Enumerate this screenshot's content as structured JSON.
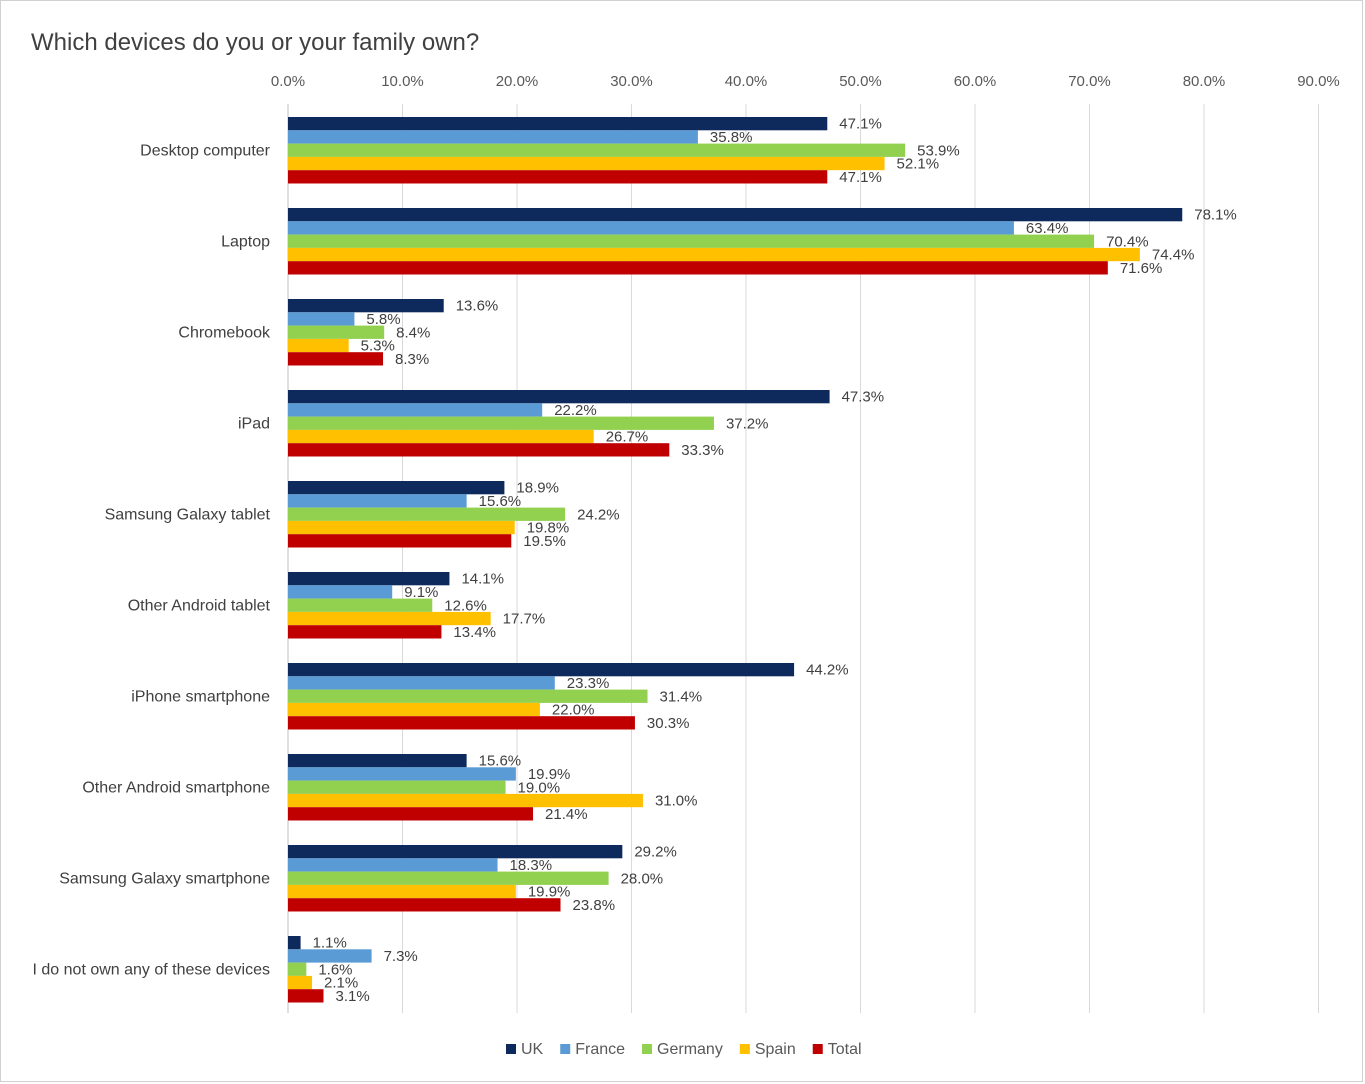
{
  "chart_data": {
    "type": "bar",
    "orientation": "horizontal",
    "title": "Which devices do you or your family own?",
    "xlim": [
      0,
      90
    ],
    "x_ticks": [
      "0.0%",
      "10.0%",
      "20.0%",
      "30.0%",
      "40.0%",
      "50.0%",
      "60.0%",
      "70.0%",
      "80.0%",
      "90.0%"
    ],
    "x_tick_values": [
      0,
      10,
      20,
      30,
      40,
      50,
      60,
      70,
      80,
      90
    ],
    "grid": true,
    "axis_position": "top",
    "legend_position": "bottom",
    "categories": [
      "Desktop computer",
      "Laptop",
      "Chromebook",
      "iPad",
      "Samsung Galaxy tablet",
      "Other Android tablet",
      "iPhone smartphone",
      "Other Android smartphone",
      "Samsung Galaxy smartphone",
      "I do not own any of these devices"
    ],
    "series": [
      {
        "name": "UK",
        "color": "#0e2a5c",
        "values": [
          47.1,
          78.1,
          13.6,
          47.3,
          18.9,
          14.1,
          44.2,
          15.6,
          29.2,
          1.1
        ],
        "labels": [
          "47.1%",
          "78.1%",
          "13.6%",
          "47.3%",
          "18.9%",
          "14.1%",
          "44.2%",
          "15.6%",
          "29.2%",
          "1.1%"
        ]
      },
      {
        "name": "France",
        "color": "#5b9bd5",
        "values": [
          35.8,
          63.4,
          5.8,
          22.2,
          15.6,
          9.1,
          23.3,
          19.9,
          18.3,
          7.3
        ],
        "labels": [
          "35.8%",
          "63.4%",
          "5.8%",
          "22.2%",
          "15.6%",
          "9.1%",
          "23.3%",
          "19.9%",
          "18.3%",
          "7.3%"
        ]
      },
      {
        "name": "Germany",
        "color": "#92d050",
        "values": [
          53.9,
          70.4,
          8.4,
          37.2,
          24.2,
          12.6,
          31.4,
          19.0,
          28.0,
          1.6
        ],
        "labels": [
          "53.9%",
          "70.4%",
          "8.4%",
          "37.2%",
          "24.2%",
          "12.6%",
          "31.4%",
          "19.0%",
          "28.0%",
          "1.6%"
        ]
      },
      {
        "name": "Spain",
        "color": "#ffc000",
        "values": [
          52.1,
          74.4,
          5.3,
          26.7,
          19.8,
          17.7,
          22.0,
          31.0,
          19.9,
          2.1
        ],
        "labels": [
          "52.1%",
          "74.4%",
          "5.3%",
          "26.7%",
          "19.8%",
          "17.7%",
          "22.0%",
          "31.0%",
          "19.9%",
          "2.1%"
        ]
      },
      {
        "name": "Total",
        "color": "#c00000",
        "values": [
          47.1,
          71.6,
          8.3,
          33.3,
          19.5,
          13.4,
          30.3,
          21.4,
          23.8,
          3.1
        ],
        "labels": [
          "47.1%",
          "71.6%",
          "8.3%",
          "33.3%",
          "19.5%",
          "13.4%",
          "30.3%",
          "21.4%",
          "23.8%",
          "3.1%"
        ]
      }
    ]
  }
}
